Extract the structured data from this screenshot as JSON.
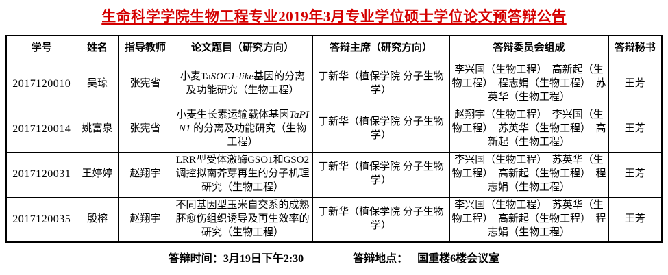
{
  "page": {
    "title": "生命科学学院生物工程专业2019年3月专业学位硕士学位论文预答辩公告",
    "title_color": "#d40000",
    "text_color": "#000000"
  },
  "table": {
    "headers": [
      "学号",
      "姓名",
      "指导教师",
      "论文题目（研究方向）",
      "答辩主席（研究方向）",
      "答辩委员会组成",
      "答辩秘书"
    ],
    "rows": [
      {
        "student_id": "2017120010",
        "name": "吴琼",
        "advisor": "张宪省",
        "thesis_segments": [
          {
            "text": "小麦Ta",
            "italic": false
          },
          {
            "text": "SOC1-like",
            "italic": true
          },
          {
            "text": "基因的分离及功能研究（生物工程）",
            "italic": false
          }
        ],
        "chair": "丁新华（植保学院 分子生物学）",
        "committee": "李兴国（生物工程）　高新起（生物工程）　程志娟（生物工程）　苏英华（生物工程）",
        "secretary": "王芳"
      },
      {
        "student_id": "2017120014",
        "name": "姚富泉",
        "advisor": "张宪省",
        "thesis_segments": [
          {
            "text": "小麦生长素运输载体基因",
            "italic": false
          },
          {
            "text": "TaPIN1",
            "italic": true
          },
          {
            "text": " 的分离及功能研究（生物工程）",
            "italic": false
          }
        ],
        "chair": "丁新华（植保学院 分子生物学）",
        "committee": "赵翔宇（生物工程）　李兴国（生物工程）　苏英华（生物工程）　高新起（生物工程）",
        "secretary": "王芳"
      },
      {
        "student_id": "2017120031",
        "name": "王婷婷",
        "advisor": "赵翔宇",
        "thesis_segments": [
          {
            "text": "LRR型受体激酶GSO1和GSO2调控拟南芥芽再生的分子机理研究（生物工程）",
            "italic": false
          }
        ],
        "chair": "丁新华（植保学院 分子生物学）",
        "committee": "李兴国（生物工程）　苏英华（生物工程）　高新起（生物工程）　程志娟（生物工程）",
        "secretary": "王芳"
      },
      {
        "student_id": "2017120035",
        "name": "殷榕",
        "advisor": "赵翔宇",
        "thesis_segments": [
          {
            "text": "不同基因型玉米自交系的成熟胚愈伤组织诱导及再生效率的研究（生物工程）",
            "italic": false
          }
        ],
        "chair": "丁新华（植保学院 分子生物学）",
        "committee": "李兴国（生物工程）　苏英华（生物工程）　高新起（生物工程）　程志娟（生物工程）",
        "secretary": "王芳"
      }
    ]
  },
  "footer": {
    "time_label": "答辩时间：",
    "time_value": "3月19日下午2:30",
    "location_label": "答辩地点：",
    "location_value": "国重楼6楼会议室"
  }
}
